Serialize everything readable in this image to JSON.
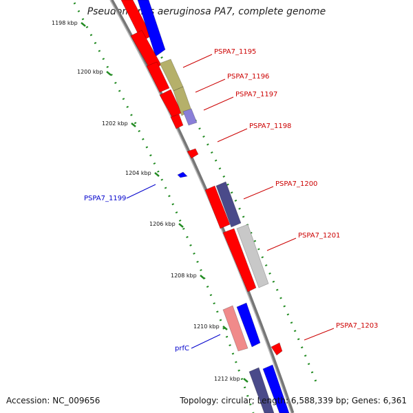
{
  "title": "Pseudomonas aeruginosa PA7, complete genome",
  "footer": {
    "accession": "Accession: NC_009656",
    "summary": "Topology: circular; Length: 6,588,339 bp; Genes: 6,361"
  },
  "colors": {
    "gene_red": "#ff0000",
    "gene_blue": "#0000ff",
    "gene_olive": "#b5b06a",
    "gene_slate": "#4a4a8a",
    "gene_grey": "#c8c8c8",
    "gene_pink": "#f08a8a",
    "gene_lavender": "#8a7fd8",
    "backbone": "#8c8c8c",
    "tick_dot": "#228b22",
    "label_red": "#cc0000",
    "label_blue": "#0000cc"
  },
  "ticks": [
    {
      "label": "1198 kbp"
    },
    {
      "label": "1200 kbp"
    },
    {
      "label": "1202 kbp"
    },
    {
      "label": "1204 kbp"
    },
    {
      "label": "1206 kbp"
    },
    {
      "label": "1208 kbp"
    },
    {
      "label": "1210 kbp"
    },
    {
      "label": "1212 kbp"
    }
  ],
  "gene_labels": [
    {
      "text": "PSPA7_1195",
      "strand": "forward"
    },
    {
      "text": "PSPA7_1196",
      "strand": "forward"
    },
    {
      "text": "PSPA7_1197",
      "strand": "forward"
    },
    {
      "text": "PSPA7_1198",
      "strand": "forward"
    },
    {
      "text": "PSPA7_1200",
      "strand": "forward"
    },
    {
      "text": "PSPA7_1201",
      "strand": "forward"
    },
    {
      "text": "PSPA7_1203",
      "strand": "forward"
    },
    {
      "text": "PSPA7_1199",
      "strand": "reverse"
    },
    {
      "text": "prfC",
      "strand": "reverse"
    }
  ]
}
